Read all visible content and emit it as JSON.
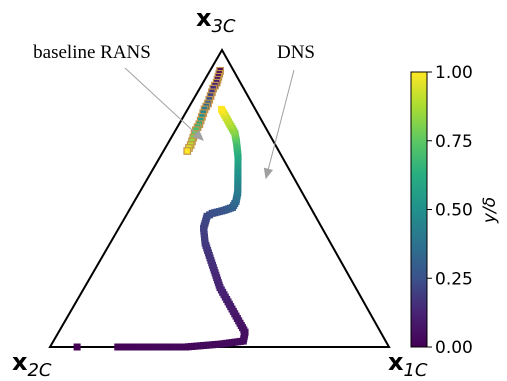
{
  "chart_data": {
    "type": "scatter",
    "title": "",
    "vertex_labels": {
      "top": {
        "base": "x",
        "sub": "3C"
      },
      "left": {
        "base": "x",
        "sub": "2C"
      },
      "right": {
        "base": "x",
        "sub": "1C"
      }
    },
    "annotations": [
      {
        "text": "baseline RANS",
        "series": "baseline RANS"
      },
      {
        "text": "DNS",
        "series": "DNS"
      }
    ],
    "colorbar": {
      "label": "y/δ",
      "ticks": [
        "0.00",
        "0.25",
        "0.50",
        "0.75",
        "1.00"
      ],
      "range": [
        0,
        1
      ],
      "colormap": "viridis"
    },
    "series": [
      {
        "name": "DNS",
        "marker": "square",
        "color_by": "y/δ",
        "points": [
          {
            "b1": 0.08,
            "b2": 0.92,
            "b3": 0.0,
            "c": 0.0
          },
          {
            "b1": 0.2,
            "b2": 0.8,
            "b3": 0.0,
            "c": 0.01
          },
          {
            "b1": 0.3,
            "b2": 0.7,
            "b3": 0.0,
            "c": 0.02
          },
          {
            "b1": 0.4,
            "b2": 0.6,
            "b3": 0.0,
            "c": 0.025
          },
          {
            "b1": 0.5,
            "b2": 0.49,
            "b3": 0.01,
            "c": 0.03
          },
          {
            "b1": 0.56,
            "b2": 0.42,
            "b3": 0.02,
            "c": 0.04
          },
          {
            "b1": 0.55,
            "b2": 0.4,
            "b3": 0.05,
            "c": 0.05
          },
          {
            "b1": 0.52,
            "b2": 0.4,
            "b3": 0.08,
            "c": 0.06
          },
          {
            "b1": 0.48,
            "b2": 0.4,
            "b3": 0.12,
            "c": 0.08
          },
          {
            "b1": 0.44,
            "b2": 0.4,
            "b3": 0.16,
            "c": 0.1
          },
          {
            "b1": 0.4,
            "b2": 0.4,
            "b3": 0.2,
            "c": 0.12
          },
          {
            "b1": 0.36,
            "b2": 0.39,
            "b3": 0.25,
            "c": 0.14
          },
          {
            "b1": 0.32,
            "b2": 0.38,
            "b3": 0.3,
            "c": 0.16
          },
          {
            "b1": 0.28,
            "b2": 0.37,
            "b3": 0.35,
            "c": 0.18
          },
          {
            "b1": 0.25,
            "b2": 0.35,
            "b3": 0.4,
            "c": 0.2
          },
          {
            "b1": 0.24,
            "b2": 0.32,
            "b3": 0.44,
            "c": 0.22
          },
          {
            "b1": 0.25,
            "b2": 0.3,
            "b3": 0.45,
            "c": 0.24
          },
          {
            "b1": 0.28,
            "b2": 0.26,
            "b3": 0.46,
            "c": 0.26
          },
          {
            "b1": 0.3,
            "b2": 0.23,
            "b3": 0.47,
            "c": 0.3
          },
          {
            "b1": 0.3,
            "b2": 0.21,
            "b3": 0.49,
            "c": 0.34
          },
          {
            "b1": 0.29,
            "b2": 0.19,
            "b3": 0.52,
            "c": 0.4
          },
          {
            "b1": 0.27,
            "b2": 0.17,
            "b3": 0.56,
            "c": 0.46
          },
          {
            "b1": 0.25,
            "b2": 0.15,
            "b3": 0.6,
            "c": 0.52
          },
          {
            "b1": 0.23,
            "b2": 0.13,
            "b3": 0.64,
            "c": 0.6
          },
          {
            "b1": 0.2,
            "b2": 0.11,
            "b3": 0.69,
            "c": 0.7
          },
          {
            "b1": 0.18,
            "b2": 0.1,
            "b3": 0.72,
            "c": 0.8
          },
          {
            "b1": 0.15,
            "b2": 0.1,
            "b3": 0.75,
            "c": 0.88
          },
          {
            "b1": 0.12,
            "b2": 0.1,
            "b3": 0.78,
            "c": 0.94
          },
          {
            "b1": 0.1,
            "b2": 0.1,
            "b3": 0.8,
            "c": 1.0
          }
        ]
      },
      {
        "name": "baseline RANS",
        "marker": "square",
        "edgecolor": "#c4944a",
        "color_by": "y/δ",
        "points": [
          {
            "b1": 0.03,
            "b2": 0.04,
            "b3": 0.93,
            "c": 0.0
          },
          {
            "b1": 0.035,
            "b2": 0.055,
            "b3": 0.91,
            "c": 0.05
          },
          {
            "b1": 0.04,
            "b2": 0.07,
            "b3": 0.89,
            "c": 0.1
          },
          {
            "b1": 0.04,
            "b2": 0.09,
            "b3": 0.87,
            "c": 0.15
          },
          {
            "b1": 0.045,
            "b2": 0.11,
            "b3": 0.845,
            "c": 0.2
          },
          {
            "b1": 0.05,
            "b2": 0.13,
            "b3": 0.82,
            "c": 0.3
          },
          {
            "b1": 0.05,
            "b2": 0.15,
            "b3": 0.8,
            "c": 0.4
          },
          {
            "b1": 0.055,
            "b2": 0.17,
            "b3": 0.775,
            "c": 0.5
          },
          {
            "b1": 0.06,
            "b2": 0.19,
            "b3": 0.75,
            "c": 0.6
          },
          {
            "b1": 0.06,
            "b2": 0.21,
            "b3": 0.73,
            "c": 0.7
          },
          {
            "b1": 0.065,
            "b2": 0.23,
            "b3": 0.705,
            "c": 0.8
          },
          {
            "b1": 0.07,
            "b2": 0.25,
            "b3": 0.68,
            "c": 0.9
          },
          {
            "b1": 0.07,
            "b2": 0.27,
            "b3": 0.66,
            "c": 1.0
          }
        ]
      }
    ]
  }
}
